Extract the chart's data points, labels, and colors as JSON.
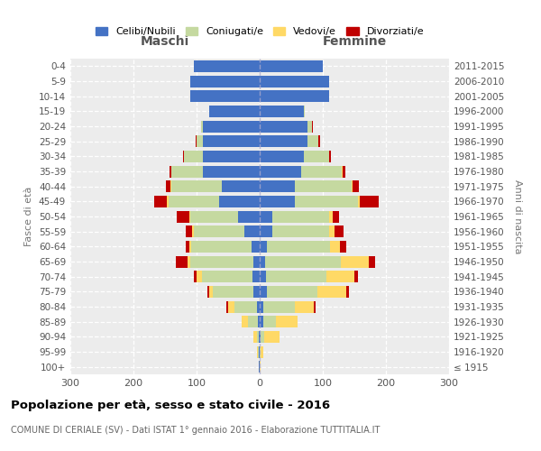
{
  "age_groups": [
    "100+",
    "95-99",
    "90-94",
    "85-89",
    "80-84",
    "75-79",
    "70-74",
    "65-69",
    "60-64",
    "55-59",
    "50-54",
    "45-49",
    "40-44",
    "35-39",
    "30-34",
    "25-29",
    "20-24",
    "15-19",
    "10-14",
    "5-9",
    "0-4"
  ],
  "birth_years": [
    "≤ 1915",
    "1916-1920",
    "1921-1925",
    "1926-1930",
    "1931-1935",
    "1936-1940",
    "1941-1945",
    "1946-1950",
    "1951-1955",
    "1956-1960",
    "1961-1965",
    "1966-1970",
    "1971-1975",
    "1976-1980",
    "1981-1985",
    "1986-1990",
    "1991-1995",
    "1996-2000",
    "2001-2005",
    "2006-2010",
    "2011-2015"
  ],
  "male_celibi": [
    1,
    2,
    2,
    3,
    5,
    10,
    12,
    10,
    13,
    25,
    35,
    65,
    60,
    90,
    90,
    90,
    90,
    80,
    110,
    110,
    105
  ],
  "male_coniugati": [
    0,
    1,
    3,
    15,
    35,
    65,
    80,
    100,
    95,
    80,
    75,
    80,
    80,
    50,
    30,
    10,
    3,
    0,
    0,
    0,
    0
  ],
  "male_vedovi": [
    0,
    1,
    5,
    10,
    10,
    5,
    8,
    5,
    3,
    2,
    2,
    2,
    1,
    0,
    0,
    0,
    0,
    0,
    0,
    0,
    0
  ],
  "male_divorziati": [
    0,
    0,
    0,
    0,
    3,
    3,
    5,
    18,
    6,
    10,
    20,
    20,
    8,
    3,
    2,
    1,
    0,
    0,
    0,
    0,
    0
  ],
  "female_celibi": [
    0,
    0,
    2,
    5,
    5,
    12,
    10,
    8,
    12,
    20,
    20,
    55,
    55,
    65,
    70,
    75,
    75,
    70,
    110,
    110,
    100
  ],
  "female_coniugati": [
    0,
    1,
    5,
    20,
    50,
    80,
    95,
    120,
    100,
    90,
    90,
    100,
    90,
    65,
    40,
    18,
    8,
    2,
    0,
    0,
    0
  ],
  "female_vedovi": [
    1,
    5,
    25,
    35,
    30,
    45,
    45,
    45,
    15,
    8,
    5,
    3,
    2,
    1,
    0,
    0,
    0,
    0,
    0,
    0,
    0
  ],
  "female_divorziati": [
    0,
    0,
    0,
    0,
    3,
    5,
    5,
    10,
    10,
    15,
    10,
    30,
    10,
    5,
    3,
    2,
    1,
    0,
    0,
    0,
    0
  ],
  "colors": {
    "celibi": "#4472c4",
    "coniugati": "#c5d9a0",
    "vedovi": "#ffd966",
    "divorziati": "#c00000"
  },
  "title": "Popolazione per età, sesso e stato civile - 2016",
  "subtitle": "COMUNE DI CERIALE (SV) - Dati ISTAT 1° gennaio 2016 - Elaborazione TUTTITALIA.IT",
  "label_maschi": "Maschi",
  "label_femmine": "Femmine",
  "ylabel_left": "Fasce di età",
  "ylabel_right": "Anni di nascita",
  "xlim": 300,
  "plot_bg": "#ececec",
  "legend_labels": [
    "Celibi/Nubili",
    "Coniugati/e",
    "Vedovi/e",
    "Divorziati/e"
  ]
}
